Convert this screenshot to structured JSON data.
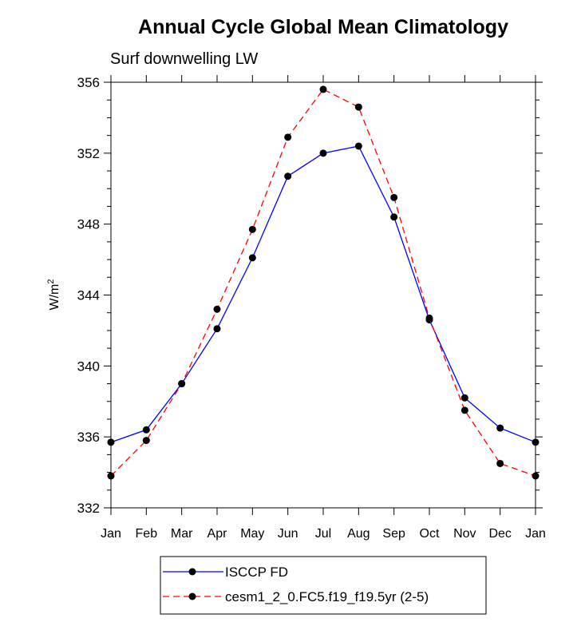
{
  "chart_data": {
    "type": "line",
    "title": "Annual Cycle Global Mean Climatology",
    "subtitle": "Surf downwelling LW",
    "ylabel": "W/m",
    "ylabel_superscript": "2",
    "ylim": [
      332,
      356
    ],
    "yticks": [
      332,
      336,
      340,
      344,
      348,
      352,
      356
    ],
    "categories": [
      "Jan",
      "Feb",
      "Mar",
      "Apr",
      "May",
      "Jun",
      "Jul",
      "Aug",
      "Sep",
      "Oct",
      "Nov",
      "Dec",
      "Jan"
    ],
    "series": [
      {
        "name": "ISCCP FD",
        "color": "#0000ff",
        "dash": "solid",
        "values": [
          335.7,
          336.4,
          339.0,
          342.1,
          346.1,
          350.7,
          352.0,
          352.4,
          348.4,
          342.6,
          338.2,
          336.5,
          335.7
        ]
      },
      {
        "name": "cesm1_2_0.FC5.f19_f19.5yr (2-5)",
        "color": "#ff0000",
        "dash": "dashed",
        "values": [
          333.8,
          335.8,
          339.0,
          343.2,
          347.7,
          352.9,
          355.6,
          354.6,
          349.5,
          342.7,
          337.5,
          334.5,
          333.8
        ]
      }
    ],
    "legend_location": "bottom-center",
    "marker_color": "#000000"
  }
}
